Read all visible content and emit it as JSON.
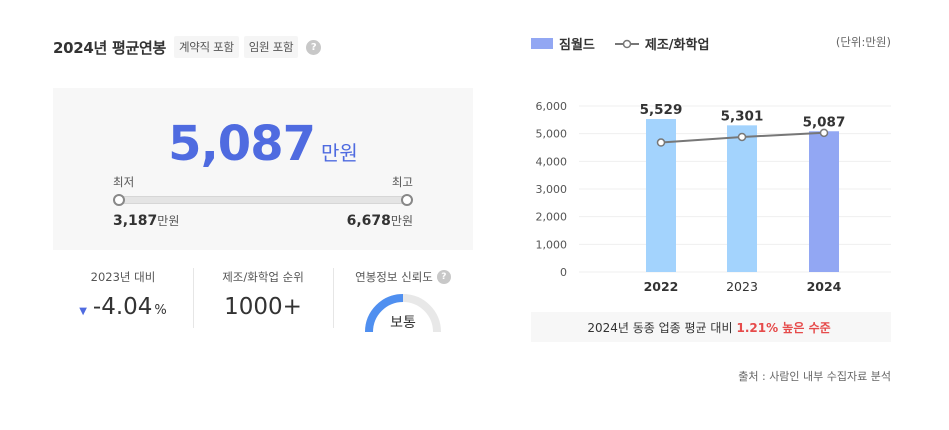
{
  "summary": {
    "title": "2024년 평균연봉",
    "tags": [
      "계약직 포함",
      "임원 포함"
    ],
    "help": "?"
  },
  "salary": {
    "average": "5,087",
    "unit": "만원",
    "min_label": "최저",
    "max_label": "최고",
    "min_value": "3,187",
    "max_value": "6,678",
    "value_unit": "만원"
  },
  "stats": {
    "yoy_label": "2023년 대비",
    "yoy_value": "-4.04",
    "yoy_unit": "%",
    "rank_label": "제조/화학업 순위",
    "rank_value": "1000+",
    "reliability_label": "연봉정보 신뢰도",
    "reliability_value": "보통",
    "reliability_level": 0.5
  },
  "colors": {
    "accent": "#4f6be0",
    "bar_past": "#a3d3fd",
    "bar_current": "#92a7f3",
    "industry_line": "#777777",
    "highlight": "#e64b4b"
  },
  "chart_data": {
    "type": "bar",
    "categories": [
      "2022",
      "2023",
      "2024"
    ],
    "series": [
      {
        "name": "짐월드",
        "values": [
          5529,
          5301,
          5087
        ]
      },
      {
        "name": "제조/화학업",
        "type": "line",
        "values": [
          4680,
          4880,
          5030
        ]
      }
    ],
    "data_labels": [
      "5,529",
      "5,301",
      "5,087"
    ],
    "y_ticks": [
      "0",
      "1,000",
      "2,000",
      "3,000",
      "4,000",
      "5,000",
      "6,000"
    ],
    "ylim": [
      0,
      6000
    ],
    "legend": "top-left",
    "grid": true
  },
  "chart_meta": {
    "unit": "(단위:만원)"
  },
  "note": {
    "prefix": "2024년 동종 업종 평균 대비",
    "highlight": "1.21% 높은 수준"
  },
  "source": "출처 : 사람인 내부 수집자료 분석"
}
